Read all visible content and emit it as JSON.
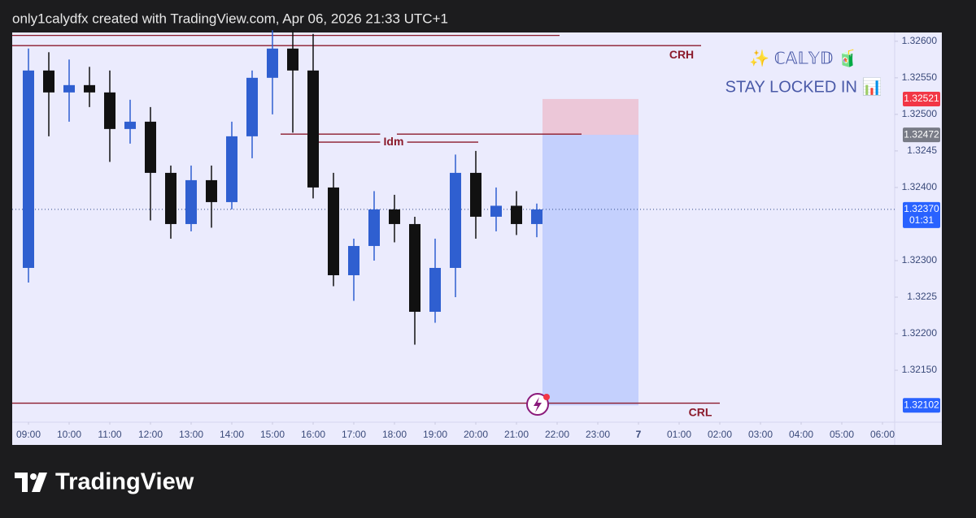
{
  "header": {
    "text": "only1calydfx created with TradingView.com, Apr 06, 2026 21:33 UTC+1"
  },
  "chart_data": {
    "type": "candlestick",
    "x": [
      9,
      9.5,
      10,
      10.5,
      11,
      11.5,
      12,
      12.5,
      13,
      13.5,
      14,
      14.5,
      15,
      15.5,
      16,
      16.5,
      17,
      17.5,
      18,
      18.5,
      19,
      19.5,
      20,
      20.5,
      21,
      21.5
    ],
    "open": [
      1.3229,
      1.3256,
      1.3253,
      1.3254,
      1.3253,
      1.3248,
      1.3249,
      1.3242,
      1.3235,
      1.3241,
      1.3238,
      1.3247,
      1.3255,
      1.3259,
      1.3256,
      1.324,
      1.3228,
      1.3232,
      1.3237,
      1.3235,
      1.3223,
      1.3229,
      1.3242,
      1.3236,
      1.32375,
      1.3235
    ],
    "high": [
      1.3259,
      1.32585,
      1.32575,
      1.32565,
      1.3256,
      1.3252,
      1.3251,
      1.3243,
      1.3243,
      1.3243,
      1.3249,
      1.3256,
      1.32615,
      1.32615,
      1.3261,
      1.3242,
      1.3233,
      1.32395,
      1.3239,
      1.3236,
      1.3233,
      1.32445,
      1.3245,
      1.324,
      1.32395,
      1.32378
    ],
    "low": [
      1.3227,
      1.3247,
      1.3249,
      1.3251,
      1.32435,
      1.3246,
      1.32355,
      1.3233,
      1.3234,
      1.32345,
      1.3237,
      1.3244,
      1.325,
      1.32475,
      1.32385,
      1.32265,
      1.32245,
      1.323,
      1.32325,
      1.32185,
      1.32215,
      1.3225,
      1.3233,
      1.3234,
      1.32335,
      1.32332
    ],
    "close": [
      1.3256,
      1.3253,
      1.3254,
      1.3253,
      1.3248,
      1.3249,
      1.3242,
      1.3235,
      1.3241,
      1.3238,
      1.3247,
      1.3255,
      1.3259,
      1.3256,
      1.324,
      1.3228,
      1.3232,
      1.3237,
      1.3235,
      1.3223,
      1.3229,
      1.3242,
      1.3236,
      1.32375,
      1.3235,
      1.3237
    ],
    "up_color": "#2f5fd0",
    "down_color": "#111111",
    "xlim": [
      8.6,
      30.3
    ],
    "xticks": [
      {
        "value": 9,
        "label": "09:00"
      },
      {
        "value": 10,
        "label": "10:00"
      },
      {
        "value": 11,
        "label": "11:00"
      },
      {
        "value": 12,
        "label": "12:00"
      },
      {
        "value": 13,
        "label": "13:00"
      },
      {
        "value": 14,
        "label": "14:00"
      },
      {
        "value": 15,
        "label": "15:00"
      },
      {
        "value": 16,
        "label": "16:00"
      },
      {
        "value": 17,
        "label": "17:00"
      },
      {
        "value": 18,
        "label": "18:00"
      },
      {
        "value": 19,
        "label": "19:00"
      },
      {
        "value": 20,
        "label": "20:00"
      },
      {
        "value": 21,
        "label": "21:00"
      },
      {
        "value": 22,
        "label": "22:00"
      },
      {
        "value": 23,
        "label": "23:00"
      },
      {
        "value": 24,
        "label": "7"
      },
      {
        "value": 25,
        "label": "01:00"
      },
      {
        "value": 26,
        "label": "02:00"
      },
      {
        "value": 27,
        "label": "03:00"
      },
      {
        "value": 28,
        "label": "04:00"
      },
      {
        "value": 29,
        "label": "05:00"
      },
      {
        "value": 30,
        "label": "06:00"
      }
    ],
    "ylim": [
      1.32079,
      1.32612
    ],
    "yticks": [
      {
        "value": 1.326,
        "label": "1.32600"
      },
      {
        "value": 1.3255,
        "label": "1.32550"
      },
      {
        "value": 1.325,
        "label": "1.32500"
      },
      1.3245,
      {
        "value": 1.324,
        "label": "1.32400"
      },
      {
        "value": 1.323,
        "label": "1.32300"
      },
      1.3225,
      {
        "value": 1.322,
        "label": "1.32200"
      },
      {
        "value": 1.3215,
        "label": "1.32150"
      }
    ],
    "levels": [
      {
        "value": 1.32608,
        "x": [
          8.6,
          22.06
        ]
      },
      {
        "value": 1.32594,
        "x": [
          8.6,
          25.54
        ],
        "label": "CRH"
      },
      {
        "value": 1.32473,
        "x": [
          15.2,
          22.6
        ]
      },
      {
        "value": 1.32462,
        "x": [
          15.9,
          20.06
        ],
        "label": "Idm"
      },
      {
        "value": 1.32105,
        "x": [
          8.6,
          26.0
        ],
        "label": "CRL"
      }
    ],
    "level_color": "#8b1a2b",
    "position": {
      "stop": 1.32521,
      "entry": 1.32472,
      "target": 1.32102,
      "x": [
        21.64,
        24.0
      ]
    },
    "price_labels": [
      {
        "value": 1.32521,
        "label": "1.32521",
        "color": "#f23645"
      },
      {
        "value": 1.32472,
        "label": "1.32472",
        "color": "#787b86"
      },
      {
        "value": 1.32102,
        "label": "1.32102",
        "color": "#2962ff"
      }
    ],
    "current_price": {
      "value": 1.3237,
      "label": "1.32370",
      "countdown": "01:31",
      "color": "#2962ff"
    }
  },
  "watermark": {
    "line1": "✨ ℂ𝔸𝕃𝕐𝔻 🧃",
    "line2": "STAY LOCKED IN 📊"
  },
  "footer": {
    "brand": "TradingView"
  }
}
